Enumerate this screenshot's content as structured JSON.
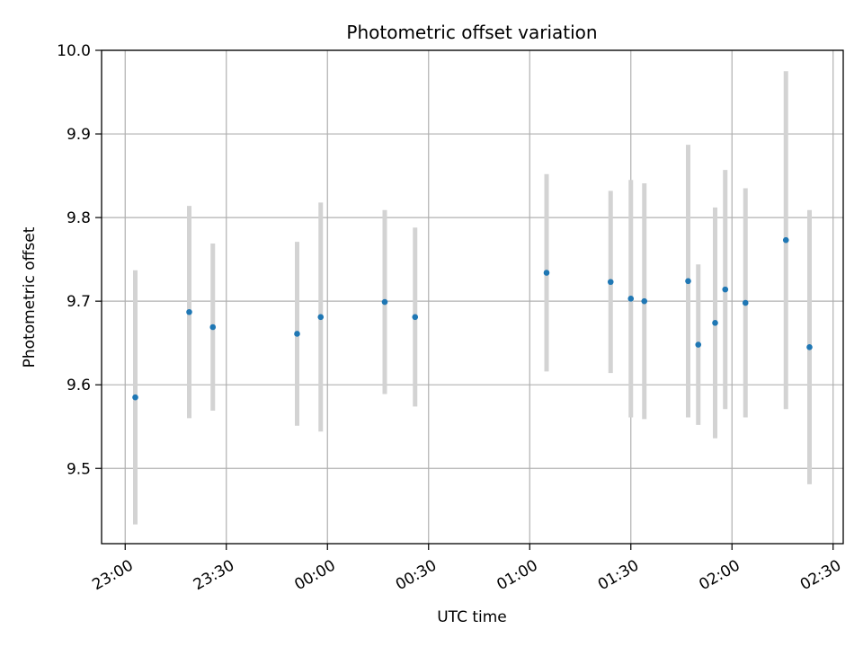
{
  "chart_data": {
    "type": "scatter",
    "title": "Photometric offset variation",
    "xlabel": "UTC time",
    "ylabel": "Photometric offset",
    "x_axis_kind": "time",
    "xlim": [
      "22:53",
      "02:33"
    ],
    "ylim": [
      9.41,
      10.0
    ],
    "x_ticks": [
      "23:00",
      "23:30",
      "00:00",
      "00:30",
      "01:00",
      "01:30",
      "02:00",
      "02:30"
    ],
    "y_ticks": [
      "9.5",
      "9.6",
      "9.7",
      "9.8",
      "9.9",
      "10.0"
    ],
    "grid": true,
    "legend": "none",
    "colors": {
      "point": "#1f77b4",
      "errorbar": "#d3d3d3",
      "grid": "#b0b0b0"
    },
    "series": [
      {
        "x": [
          "23:03",
          "23:19",
          "23:26",
          "23:51",
          "23:58",
          "00:17",
          "00:26",
          "01:05",
          "01:24",
          "01:30",
          "01:34",
          "01:47",
          "01:50",
          "01:55",
          "01:58",
          "02:04",
          "02:16",
          "02:23"
        ],
        "y": [
          9.585,
          9.687,
          9.669,
          9.661,
          9.681,
          9.699,
          9.681,
          9.734,
          9.723,
          9.703,
          9.7,
          9.724,
          9.648,
          9.674,
          9.714,
          9.698,
          9.773,
          9.645
        ],
        "yerr": [
          0.152,
          0.127,
          0.1,
          0.11,
          0.137,
          0.11,
          0.107,
          0.118,
          0.109,
          0.142,
          0.141,
          0.163,
          0.096,
          0.138,
          0.143,
          0.137,
          0.202,
          0.164
        ]
      }
    ]
  }
}
